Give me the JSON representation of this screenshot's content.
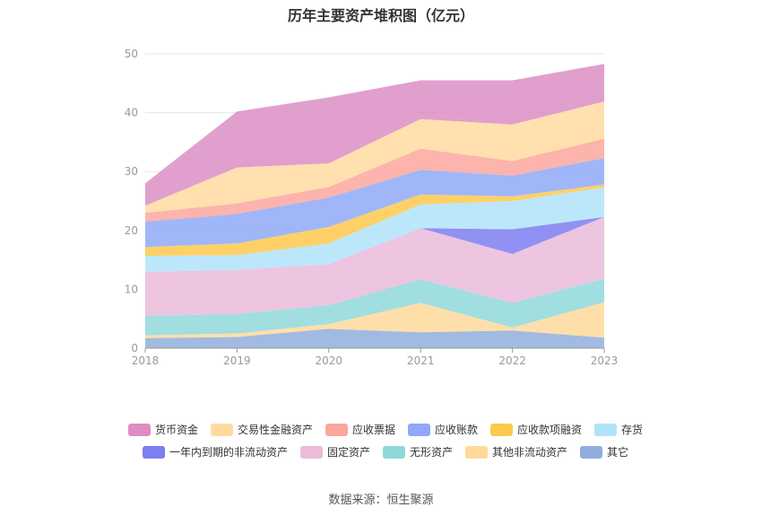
{
  "chart_data": {
    "type": "area",
    "stacked": true,
    "title": "历年主要资产堆积图（亿元）",
    "x": [
      "2018",
      "2019",
      "2020",
      "2021",
      "2022",
      "2023"
    ],
    "ylim": [
      0,
      50
    ],
    "yticks": [
      0,
      10,
      20,
      30,
      40,
      50
    ],
    "grid": true,
    "legend_position": "bottom",
    "series": [
      {
        "name": "其它",
        "color": "#90aedc",
        "values": [
          1.7,
          1.9,
          3.3,
          2.7,
          3.0,
          1.8
        ]
      },
      {
        "name": "其他非流动资产",
        "color": "#ffd99a",
        "values": [
          0.5,
          0.6,
          0.8,
          5.0,
          0.5,
          6.0
        ]
      },
      {
        "name": "无形资产",
        "color": "#8fd8d9",
        "values": [
          3.3,
          3.3,
          3.2,
          4.0,
          4.2,
          4.0
        ]
      },
      {
        "name": "固定资产",
        "color": "#eabbda",
        "values": [
          7.5,
          7.5,
          7.0,
          8.7,
          8.3,
          10.5
        ]
      },
      {
        "name": "一年内到期的非流动资产",
        "color": "#7d7ef0",
        "values": [
          0,
          0,
          0,
          0,
          4.2,
          0
        ]
      },
      {
        "name": "存货",
        "color": "#b0e3fa",
        "values": [
          2.7,
          2.5,
          3.5,
          4.0,
          4.8,
          5.0
        ]
      },
      {
        "name": "应收款项融资",
        "color": "#fdc94e",
        "values": [
          1.5,
          2.0,
          2.8,
          1.7,
          0.8,
          0.5
        ]
      },
      {
        "name": "应收账款",
        "color": "#8fa9f8",
        "values": [
          4.3,
          5.0,
          5.0,
          4.2,
          3.5,
          4.5
        ]
      },
      {
        "name": "应收票据",
        "color": "#fba79d",
        "values": [
          1.5,
          1.8,
          1.8,
          3.6,
          2.5,
          3.3
        ]
      },
      {
        "name": "交易性金融资产",
        "color": "#ffdba0",
        "values": [
          1.2,
          6.1,
          4.0,
          5.0,
          6.2,
          6.3
        ]
      },
      {
        "name": "货币资金",
        "color": "#dc8ec4",
        "values": [
          3.8,
          9.5,
          11.2,
          6.6,
          7.5,
          6.4
        ]
      }
    ],
    "legend_order": [
      "货币资金",
      "交易性金融资产",
      "应收票据",
      "应收账款",
      "应收款项融资",
      "存货",
      "一年内到期的非流动资产",
      "固定资产",
      "无形资产",
      "其他非流动资产",
      "其它"
    ]
  },
  "source": "数据来源：恒生聚源"
}
